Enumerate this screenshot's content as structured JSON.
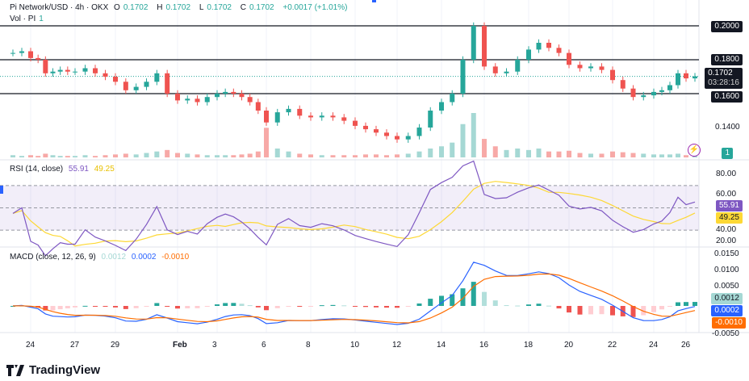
{
  "header": {
    "symbol": "Pi Network/USD · 4h · OKX",
    "open_label": "O",
    "open": "0.1702",
    "high_label": "H",
    "high": "0.1702",
    "low_label": "L",
    "low": "0.1702",
    "close_label": "C",
    "close": "0.1702",
    "change": "+0.0017 (+1.01%)",
    "vol_label": "Vol · PI",
    "vol_value": "1"
  },
  "price_axis": {
    "ticks": [
      "0.2000",
      "0.1800",
      "0.1600",
      "0.1400"
    ],
    "last_price": "0.1702",
    "countdown": "03:28:16",
    "volume_tag": "1"
  },
  "rsi": {
    "label": "RSI (14, close)",
    "value": "55.91",
    "ma_value": "49.25",
    "ticks": [
      "80.00",
      "60.00",
      "40.00",
      "20.00"
    ]
  },
  "macd": {
    "label": "MACD (close, 12, 26, 9)",
    "hist": "0.0012",
    "macd": "0.0002",
    "signal": "-0.0010",
    "ticks": [
      "0.0150",
      "0.0100",
      "0.0050",
      "-0.0050"
    ]
  },
  "time_axis": [
    "24",
    "27",
    "29",
    "Feb",
    "3",
    "6",
    "8",
    "10",
    "12",
    "14",
    "16",
    "18",
    "20",
    "22",
    "24",
    "26"
  ],
  "brand": "TradingView",
  "colors": {
    "up": "#26a69a",
    "down": "#ef5350",
    "rsi": "#7e57c2",
    "rsi_ma": "#fdd835",
    "macd": "#2962ff",
    "signal": "#ff6d00",
    "accent": "#2962ff"
  },
  "chart_data": {
    "type": "candlestick",
    "interval": "4h",
    "horizontal_levels": [
      0.2,
      0.18,
      0.16
    ],
    "ylim": [
      0.123,
      0.215
    ],
    "dates": [
      "Jan 23 00:00",
      "Jan 23 12:00",
      "Jan 24 00:00",
      "Jan 24 12:00",
      "Jan 25 00:00",
      "Jan 25 12:00",
      "Jan 26 00:00",
      "Jan 26 12:00",
      "Jan 27 00:00",
      "Jan 27 12:00",
      "Jan 28 00:00",
      "Jan 28 12:00",
      "Jan 29 00:00",
      "Jan 29 12:00",
      "Jan 30 00:00",
      "Jan 30 12:00",
      "Jan 31 00:00",
      "Jan 31 12:00",
      "Feb 1 00:00",
      "Feb 1 12:00",
      "Feb 2 00:00",
      "Feb 2 12:00",
      "Feb 3 00:00",
      "Feb 3 12:00",
      "Feb 4 00:00",
      "Feb 4 12:00",
      "Feb 5 00:00",
      "Feb 5 12:00",
      "Feb 6 00:00",
      "Feb 6 12:00",
      "Feb 7 00:00",
      "Feb 7 12:00",
      "Feb 8 00:00",
      "Feb 8 12:00",
      "Feb 9 00:00",
      "Feb 9 12:00",
      "Feb 10 00:00",
      "Feb 10 12:00",
      "Feb 11 00:00",
      "Feb 11 12:00",
      "Feb 12 00:00",
      "Feb 12 12:00",
      "Feb 13 00:00",
      "Feb 13 12:00",
      "Feb 14 00:00",
      "Feb 14 12:00",
      "Feb 15 00:00",
      "Feb 15 12:00",
      "Feb 16 00:00",
      "Feb 16 12:00",
      "Feb 17 00:00",
      "Feb 17 12:00",
      "Feb 18 00:00",
      "Feb 18 12:00",
      "Feb 19 00:00",
      "Feb 19 12:00",
      "Feb 20 00:00",
      "Feb 20 12:00",
      "Feb 21 00:00",
      "Feb 21 12:00",
      "Feb 22 00:00",
      "Feb 22 12:00",
      "Feb 23 00:00",
      "Feb 23 12:00",
      "Feb 24 00:00",
      "Feb 24 12:00",
      "Feb 25 00:00",
      "Feb 25 12:00",
      "Feb 26 00:00",
      "Feb 26 12:00"
    ],
    "close": [
      0.184,
      0.185,
      0.181,
      0.18,
      0.172,
      0.173,
      0.174,
      0.173,
      0.173,
      0.175,
      0.172,
      0.17,
      0.167,
      0.162,
      0.164,
      0.167,
      0.172,
      0.16,
      0.156,
      0.157,
      0.155,
      0.158,
      0.16,
      0.161,
      0.16,
      0.158,
      0.155,
      0.15,
      0.143,
      0.149,
      0.151,
      0.147,
      0.146,
      0.147,
      0.146,
      0.144,
      0.141,
      0.139,
      0.137,
      0.135,
      0.133,
      0.135,
      0.14,
      0.15,
      0.155,
      0.16,
      0.18,
      0.2,
      0.176,
      0.172,
      0.173,
      0.18,
      0.186,
      0.19,
      0.187,
      0.184,
      0.177,
      0.175,
      0.176,
      0.174,
      0.168,
      0.163,
      0.158,
      0.159,
      0.161,
      0.162,
      0.165,
      0.172,
      0.169,
      0.1702
    ],
    "volume_relative": [
      3,
      2,
      3,
      2,
      5,
      3,
      2,
      2,
      2,
      3,
      2,
      3,
      4,
      5,
      4,
      6,
      8,
      10,
      6,
      5,
      4,
      3,
      3,
      3,
      3,
      4,
      5,
      8,
      40,
      12,
      8,
      5,
      4,
      3,
      3,
      3,
      3,
      4,
      4,
      3,
      4,
      5,
      8,
      12,
      15,
      20,
      45,
      60,
      25,
      15,
      10,
      12,
      10,
      12,
      8,
      8,
      9,
      6,
      5,
      5,
      8,
      7,
      6,
      5,
      4,
      4,
      4,
      5,
      3,
      2
    ],
    "rsi_bands": [
      70,
      30
    ]
  }
}
